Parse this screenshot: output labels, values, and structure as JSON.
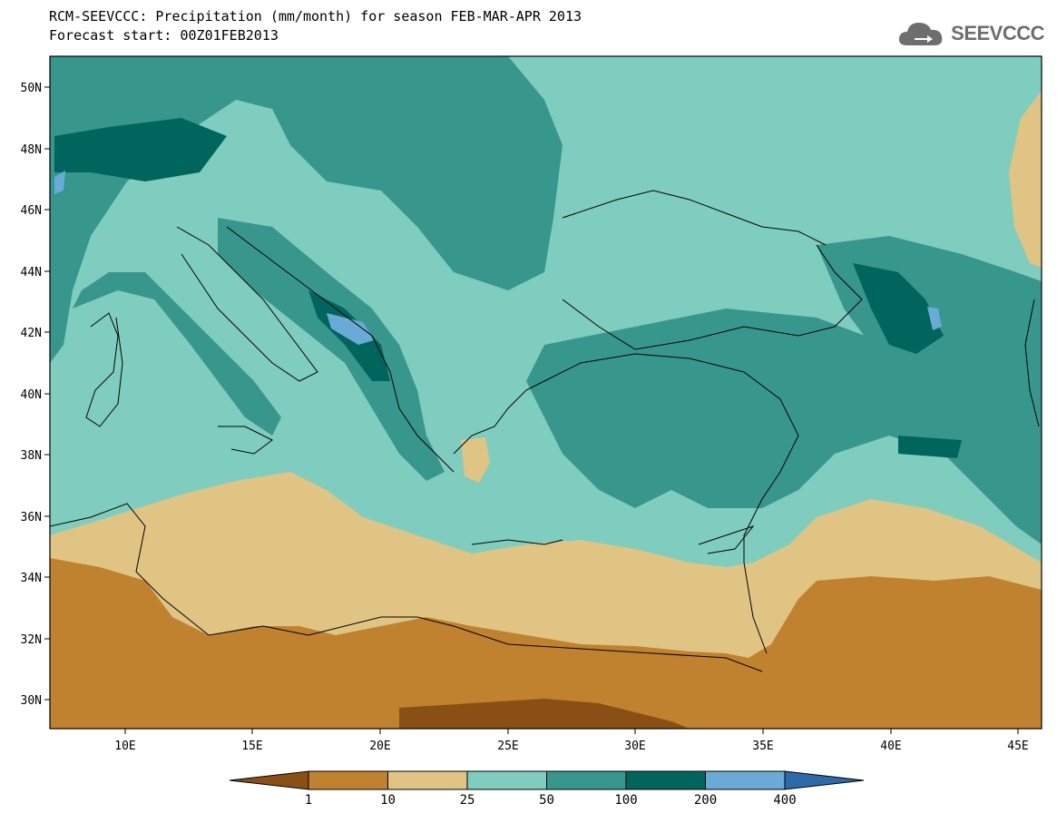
{
  "header": {
    "title": "RCM-SEEVCCC: Precipitation (mm/month) for season FEB-MAR-APR 2013",
    "subtitle": "Forecast start: 00Z01FEB2013"
  },
  "logo": {
    "text": "SEEVCCC",
    "icon": "cloud-arrow-icon"
  },
  "map": {
    "lat_ticks": [
      "50N",
      "48N",
      "46N",
      "44N",
      "42N",
      "40N",
      "38N",
      "36N",
      "34N",
      "32N",
      "30N"
    ],
    "lon_ticks": [
      "10E",
      "15E",
      "20E",
      "25E",
      "30E",
      "35E",
      "40E",
      "45E"
    ]
  },
  "colorbar": {
    "labels": [
      "1",
      "10",
      "25",
      "50",
      "100",
      "200",
      "400"
    ],
    "colors": [
      "#8a4f14",
      "#c0822e",
      "#e0c483",
      "#7fcdbf",
      "#37978c",
      "#00665d",
      "#6aaad6",
      "#2b6ba7"
    ]
  }
}
